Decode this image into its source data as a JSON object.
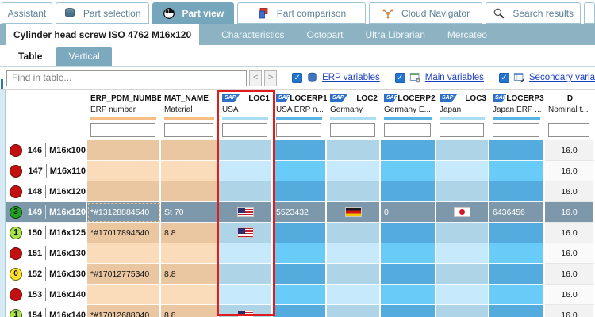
{
  "icons": {
    "check": "✓",
    "prev": "<",
    "next": ">"
  },
  "sap_badge": "SAP",
  "colors": {
    "accent_tab": "#76a6bc",
    "subbar_bg": "#8db2c1",
    "selected_row": "#7d98aa",
    "highlight_border": "#e21b1b",
    "erp_cell_dark": "#ebc7a1",
    "erp_cell_light": "#fbdcba",
    "loc_cell_dark": "#aed4e8",
    "loc_cell_light": "#c6eafb",
    "locerp_cell_dark": "#54abde",
    "locerp_cell_light": "#69ccf8",
    "status_red": "#c21010",
    "status_green": "#1fa11f",
    "status_light_green": "#a9e44d",
    "status_yellow": "#ffe12b",
    "link_blue": "#1d3fbe"
  },
  "main_tabs": [
    {
      "label": "Assistant",
      "active": false
    },
    {
      "label": "Part selection",
      "active": false
    },
    {
      "label": "Part view",
      "active": true
    },
    {
      "label": "Part comparison",
      "active": false
    },
    {
      "label": "Cloud Navigator",
      "active": false
    },
    {
      "label": "Search results",
      "active": false
    }
  ],
  "part_tabs": [
    {
      "label": "Cylinder head screw ISO 4762 M16x120",
      "active": true
    },
    {
      "label": "Characteristics",
      "active": false
    },
    {
      "label": "Octopart",
      "active": false
    },
    {
      "label": "Ultra Librarian",
      "active": false
    },
    {
      "label": "Mercateo",
      "active": false
    }
  ],
  "view_tabs": [
    {
      "label": "Table",
      "active": true
    },
    {
      "label": "Vertical",
      "active": false
    }
  ],
  "toolbar": {
    "find_placeholder": "Find in table...",
    "checkboxes": [
      {
        "label": "ERP variables",
        "checked": true
      },
      {
        "label": "Main variables",
        "checked": true
      },
      {
        "label": "Secondary varia",
        "checked": true
      }
    ]
  },
  "table": {
    "columns": [
      {
        "id": "rowhead",
        "name": "",
        "sub": "",
        "type": "rowhead",
        "sap": false
      },
      {
        "id": "erp",
        "name": "ERP_PDM_NUMBER",
        "sub": "ERP number",
        "type": "erp",
        "sap": false
      },
      {
        "id": "mat",
        "name": "MAT_NAME",
        "sub": "Material",
        "type": "erp",
        "sap": false
      },
      {
        "id": "loc1",
        "name": "LOC1",
        "sub": "USA",
        "type": "loc",
        "sap": true,
        "highlighted": true
      },
      {
        "id": "locerp1",
        "name": "LOCERP1",
        "sub": "USA ERP n...",
        "type": "locerp",
        "sap": true
      },
      {
        "id": "loc2",
        "name": "LOC2",
        "sub": "Germany",
        "type": "loc",
        "sap": true
      },
      {
        "id": "locerp2",
        "name": "LOCERP2",
        "sub": "Germany E...",
        "type": "locerp",
        "sap": true
      },
      {
        "id": "loc3",
        "name": "LOC3",
        "sub": "Japan",
        "type": "loc",
        "sap": true
      },
      {
        "id": "locerp3",
        "name": "LOCERP3",
        "sub": "Japan ERP ...",
        "type": "locerp",
        "sap": true
      },
      {
        "id": "d",
        "name": "D",
        "sub": "Nominal t...",
        "type": "d",
        "sap": false
      }
    ],
    "rows": [
      {
        "num": "146",
        "name": "M16x100",
        "status": "red",
        "status_text": "",
        "erp": "",
        "mat": "",
        "loc1": null,
        "locerp1": "",
        "loc2": null,
        "locerp2": "",
        "loc3": null,
        "locerp3": "",
        "d": "16.0",
        "selected": false
      },
      {
        "num": "147",
        "name": "M16x110",
        "status": "red",
        "status_text": "",
        "erp": "",
        "mat": "",
        "loc1": null,
        "locerp1": "",
        "loc2": null,
        "locerp2": "",
        "loc3": null,
        "locerp3": "",
        "d": "16.0",
        "selected": false
      },
      {
        "num": "148",
        "name": "M16x120",
        "status": "red",
        "status_text": "",
        "erp": "",
        "mat": "",
        "loc1": null,
        "locerp1": "",
        "loc2": null,
        "locerp2": "",
        "loc3": null,
        "locerp3": "",
        "d": "16.0",
        "selected": false
      },
      {
        "num": "149",
        "name": "M16x120",
        "status": "green",
        "status_text": "3",
        "erp": "*#13128884540",
        "mat": "St 70",
        "loc1": "us",
        "locerp1": "5523432",
        "loc2": "de",
        "locerp2": "0",
        "loc3": "jp",
        "locerp3": "6436456",
        "d": "16.0",
        "selected": true,
        "focus": "erp"
      },
      {
        "num": "150",
        "name": "M16x125",
        "status": "lightgreen",
        "status_text": "1",
        "erp": "*#17017894540",
        "mat": "8.8",
        "loc1": "us",
        "locerp1": "",
        "loc2": null,
        "locerp2": "",
        "loc3": null,
        "locerp3": "",
        "d": "16.0",
        "selected": false
      },
      {
        "num": "151",
        "name": "M16x130",
        "status": "red",
        "status_text": "",
        "erp": "",
        "mat": "",
        "loc1": null,
        "locerp1": "",
        "loc2": null,
        "locerp2": "",
        "loc3": null,
        "locerp3": "",
        "d": "16.0",
        "selected": false
      },
      {
        "num": "152",
        "name": "M16x130",
        "status": "yellow",
        "status_text": "0",
        "erp": "*#17012775340",
        "mat": "8.8",
        "loc1": null,
        "locerp1": "",
        "loc2": null,
        "locerp2": "",
        "loc3": null,
        "locerp3": "",
        "d": "16.0",
        "selected": false
      },
      {
        "num": "153",
        "name": "M16x140",
        "status": "red",
        "status_text": "",
        "erp": "",
        "mat": "",
        "loc1": null,
        "locerp1": "",
        "loc2": null,
        "locerp2": "",
        "loc3": null,
        "locerp3": "",
        "d": "16.0",
        "selected": false
      },
      {
        "num": "154",
        "name": "M16x140",
        "status": "lightgreen",
        "status_text": "1",
        "erp": "*#17012688040",
        "mat": "8.8",
        "loc1": "us",
        "locerp1": "",
        "loc2": null,
        "locerp2": "",
        "loc3": null,
        "locerp3": "",
        "d": "16.0",
        "selected": false
      }
    ]
  }
}
